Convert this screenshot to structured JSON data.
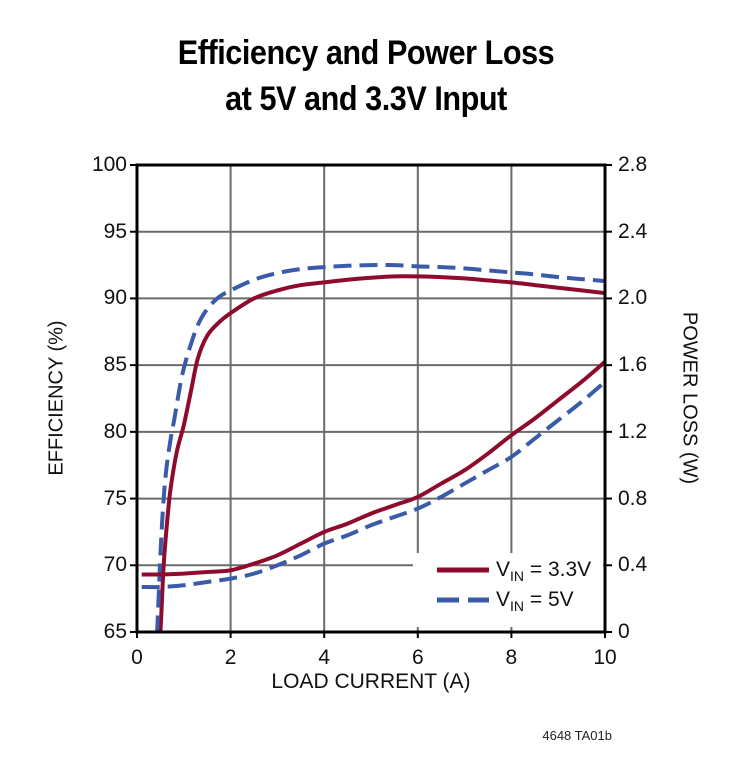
{
  "title": {
    "line1": "Efficiency and Power Loss",
    "line2": "at 5V and 3.3V Input"
  },
  "footer_note": "4648 TA01b",
  "colors": {
    "vin_3v3": "#8E0B2D",
    "vin_5v": "#3A5BA9",
    "grid": "#6B6B6B",
    "axis": "#000000"
  },
  "legend": {
    "entries": [
      {
        "id": "vin-3v3",
        "v": "V",
        "sub": "IN",
        "rest": " = 3.3V",
        "line": "solid",
        "color": "#8E0B2D"
      },
      {
        "id": "vin-5v",
        "v": "V",
        "sub": "IN",
        "rest": " = 5V",
        "line": "dashed",
        "color": "#3A5BA9"
      }
    ]
  },
  "chart_data": {
    "type": "line",
    "title": "Efficiency and Power Loss at 5V and 3.3V Input",
    "xlabel": "LOAD CURRENT (A)",
    "ylabel_left": "EFFICIENCY (%)",
    "ylabel_right": "POWER LOSS (W)",
    "xlim": [
      0,
      10
    ],
    "ylim_left": [
      65,
      100
    ],
    "ylim_right": [
      0,
      2.8
    ],
    "xtick_labels": [
      "0",
      "2",
      "4",
      "6",
      "8",
      "10"
    ],
    "xticks": [
      0,
      2,
      4,
      6,
      8,
      10
    ],
    "ytick_labels_left": [
      "65",
      "70",
      "75",
      "80",
      "85",
      "90",
      "95",
      "100"
    ],
    "yticks_left": [
      65,
      70,
      75,
      80,
      85,
      90,
      95,
      100
    ],
    "ytick_labels_right": [
      "0",
      "0.4",
      "0.8",
      "1.2",
      "1.6",
      "2.0",
      "2.4",
      "2.8"
    ],
    "yticks_right": [
      0,
      0.4,
      0.8,
      1.2,
      1.6,
      2.0,
      2.4,
      2.8
    ],
    "grid": true,
    "legend_position": "bottom-right",
    "series": [
      {
        "name": "efficiency_vin_3.3v",
        "legend": "VIN = 3.3V",
        "axis": "left",
        "style": "solid",
        "color_key": "vin_3v3",
        "x": [
          0.42,
          0.5,
          0.57,
          0.65,
          0.72,
          0.85,
          1.0,
          1.15,
          1.3,
          1.5,
          1.75,
          2,
          2.5,
          3,
          3.5,
          4,
          4.5,
          5,
          5.5,
          6,
          6.5,
          7,
          7.5,
          8,
          8.5,
          9,
          9.5,
          10
        ],
        "y": [
          61,
          65,
          70,
          73.5,
          75.8,
          78.5,
          80.5,
          83,
          85.5,
          87.2,
          88.2,
          88.9,
          90,
          90.6,
          91,
          91.2,
          91.4,
          91.55,
          91.65,
          91.65,
          91.6,
          91.5,
          91.35,
          91.2,
          91,
          90.8,
          90.6,
          90.4
        ]
      },
      {
        "name": "efficiency_vin_5v",
        "legend": "VIN = 5V",
        "axis": "left",
        "style": "dashed",
        "color_key": "vin_5v",
        "x": [
          0.36,
          0.43,
          0.49,
          0.55,
          0.62,
          0.72,
          0.8,
          0.95,
          1.1,
          1.3,
          1.5,
          1.75,
          2,
          2.5,
          3,
          3.5,
          4,
          4.5,
          5,
          5.5,
          6,
          6.5,
          7,
          7.5,
          8,
          8.5,
          9,
          9.5,
          10
        ],
        "y": [
          61,
          65,
          70,
          74,
          77,
          79.5,
          81,
          84,
          86,
          88,
          89.2,
          90.1,
          90.6,
          91.4,
          91.9,
          92.2,
          92.35,
          92.45,
          92.5,
          92.5,
          92.4,
          92.35,
          92.25,
          92.1,
          91.95,
          91.8,
          91.6,
          91.45,
          91.3
        ]
      },
      {
        "name": "power_loss_vin_3.3v",
        "legend": "VIN = 3.3V",
        "axis": "right",
        "style": "solid",
        "color_key": "vin_3v3",
        "x": [
          0.1,
          0.5,
          1,
          1.5,
          2,
          2.5,
          3,
          3.5,
          4,
          4.5,
          5,
          5.5,
          6,
          6.5,
          7,
          7.5,
          8,
          8.5,
          9,
          9.5,
          10
        ],
        "y": [
          0.345,
          0.345,
          0.35,
          0.36,
          0.37,
          0.41,
          0.46,
          0.53,
          0.6,
          0.65,
          0.71,
          0.76,
          0.81,
          0.89,
          0.97,
          1.07,
          1.18,
          1.28,
          1.39,
          1.5,
          1.62
        ]
      },
      {
        "name": "power_loss_vin_5v",
        "legend": "VIN = 5V",
        "axis": "right",
        "style": "dashed",
        "color_key": "vin_5v",
        "x": [
          0.1,
          0.5,
          1,
          1.5,
          2,
          2.5,
          3,
          3.5,
          4,
          4.5,
          5,
          5.5,
          6,
          6.5,
          7,
          7.5,
          8,
          8.5,
          9,
          9.5,
          10
        ],
        "y": [
          0.27,
          0.27,
          0.28,
          0.3,
          0.32,
          0.35,
          0.4,
          0.46,
          0.53,
          0.58,
          0.64,
          0.69,
          0.74,
          0.81,
          0.89,
          0.97,
          1.05,
          1.16,
          1.27,
          1.38,
          1.5
        ]
      }
    ]
  }
}
